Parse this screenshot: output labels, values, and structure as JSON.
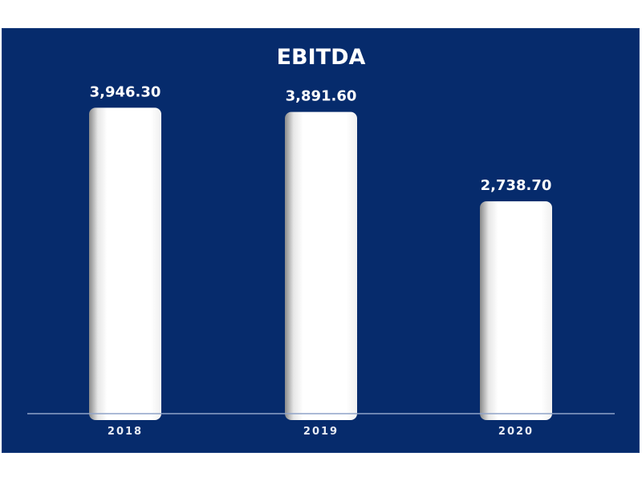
{
  "chart_data": {
    "type": "bar",
    "title": "EBITDA",
    "categories": [
      "2018",
      "2019",
      "2020"
    ],
    "values": [
      3946.3,
      3891.6,
      2738.7
    ],
    "value_labels": [
      "3,946.30",
      "3,891.60",
      "2,738.70"
    ],
    "xlabel": "",
    "ylabel": "",
    "ylim": [
      0,
      4550
    ],
    "grid": false,
    "legend": "none"
  },
  "colors": {
    "background": "#062b6c",
    "bar": "#ffffff",
    "axis": "#8fa3c8",
    "text": "#ffffff"
  }
}
